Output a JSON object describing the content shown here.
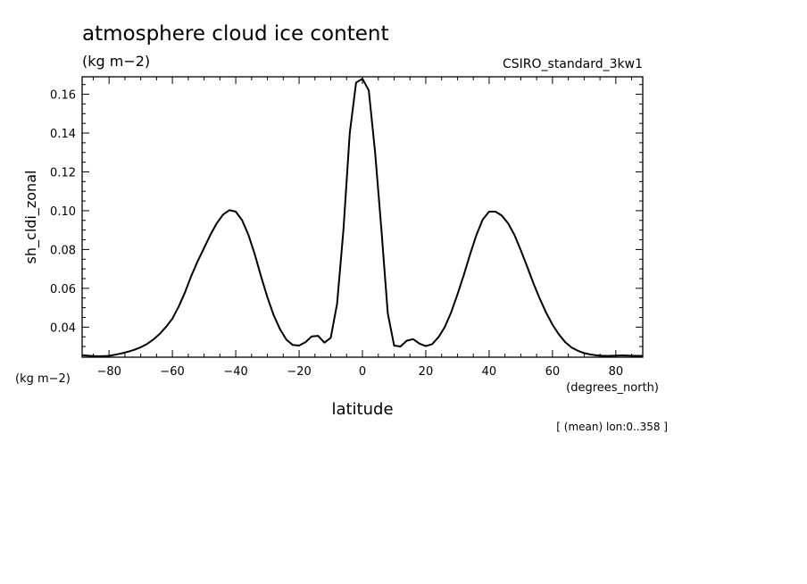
{
  "header": {
    "title": "atmosphere cloud ice content",
    "units": "(kg m−2)",
    "source": "CSIRO_standard_3kw1"
  },
  "footer": {
    "subset": "[ (mean) lon:0..358 ]"
  },
  "chart_data": {
    "type": "line",
    "title": "atmosphere cloud ice content",
    "ylabel": "sh_cldi_zonal",
    "yunits": "(kg m−2)",
    "xlabel": "latitude",
    "xunits": "(degrees_north)",
    "xlim": [
      -88.5,
      88.5
    ],
    "ylim": [
      0.0245,
      0.169
    ],
    "x_ticks": [
      -80,
      -60,
      -40,
      -20,
      0,
      20,
      40,
      60,
      80
    ],
    "x_tick_labels": [
      "−80",
      "−60",
      "−40",
      "−20",
      "0",
      "20",
      "40",
      "60",
      "80"
    ],
    "y_ticks": [
      0.04,
      0.06,
      0.08,
      0.1,
      0.12,
      0.14,
      0.16
    ],
    "y_tick_labels": [
      "0.04",
      "0.06",
      "0.08",
      "0.10",
      "0.12",
      "0.14",
      "0.16"
    ],
    "grid": false,
    "series": [
      {
        "x": [
          -88.5,
          -86,
          -84,
          -82,
          -80,
          -78,
          -76,
          -74,
          -72,
          -70,
          -68,
          -66,
          -64,
          -62,
          -60,
          -58,
          -56,
          -54,
          -52,
          -50,
          -48,
          -46,
          -44,
          -42,
          -40,
          -38,
          -36,
          -34,
          -32,
          -30,
          -28,
          -26,
          -24,
          -22,
          -20,
          -18,
          -16,
          -14,
          -12,
          -10,
          -8,
          -6,
          -4,
          -2,
          0,
          2,
          4,
          6,
          8,
          10,
          12,
          14,
          16,
          18,
          20,
          22,
          24,
          26,
          28,
          30,
          32,
          34,
          36,
          38,
          40,
          42,
          44,
          46,
          48,
          50,
          52,
          54,
          56,
          58,
          60,
          62,
          64,
          66,
          68,
          70,
          72,
          74,
          76,
          78,
          80,
          82,
          84,
          86,
          88.5
        ],
        "y": [
          0.0255,
          0.0252,
          0.025,
          0.025,
          0.0252,
          0.0258,
          0.0265,
          0.0273,
          0.0283,
          0.0296,
          0.0313,
          0.0336,
          0.0365,
          0.0401,
          0.0444,
          0.0506,
          0.058,
          0.0665,
          0.074,
          0.0808,
          0.0876,
          0.0935,
          0.098,
          0.1003,
          0.0995,
          0.0951,
          0.0875,
          0.0775,
          0.066,
          0.0553,
          0.046,
          0.0388,
          0.0335,
          0.0308,
          0.0305,
          0.0322,
          0.0352,
          0.0355,
          0.032,
          0.0345,
          0.052,
          0.09,
          0.14,
          0.166,
          0.168,
          0.162,
          0.13,
          0.09,
          0.047,
          0.0305,
          0.03,
          0.033,
          0.0338,
          0.0315,
          0.0302,
          0.0312,
          0.0348,
          0.04,
          0.0475,
          0.0568,
          0.0668,
          0.0775,
          0.0875,
          0.0955,
          0.0995,
          0.0995,
          0.0975,
          0.0935,
          0.0875,
          0.0796,
          0.0712,
          0.0625,
          0.0546,
          0.0474,
          0.0413,
          0.0363,
          0.0323,
          0.0295,
          0.0278,
          0.0266,
          0.0259,
          0.0254,
          0.0252,
          0.0252,
          0.0253,
          0.0254,
          0.0253,
          0.0252,
          0.0252
        ]
      }
    ]
  }
}
